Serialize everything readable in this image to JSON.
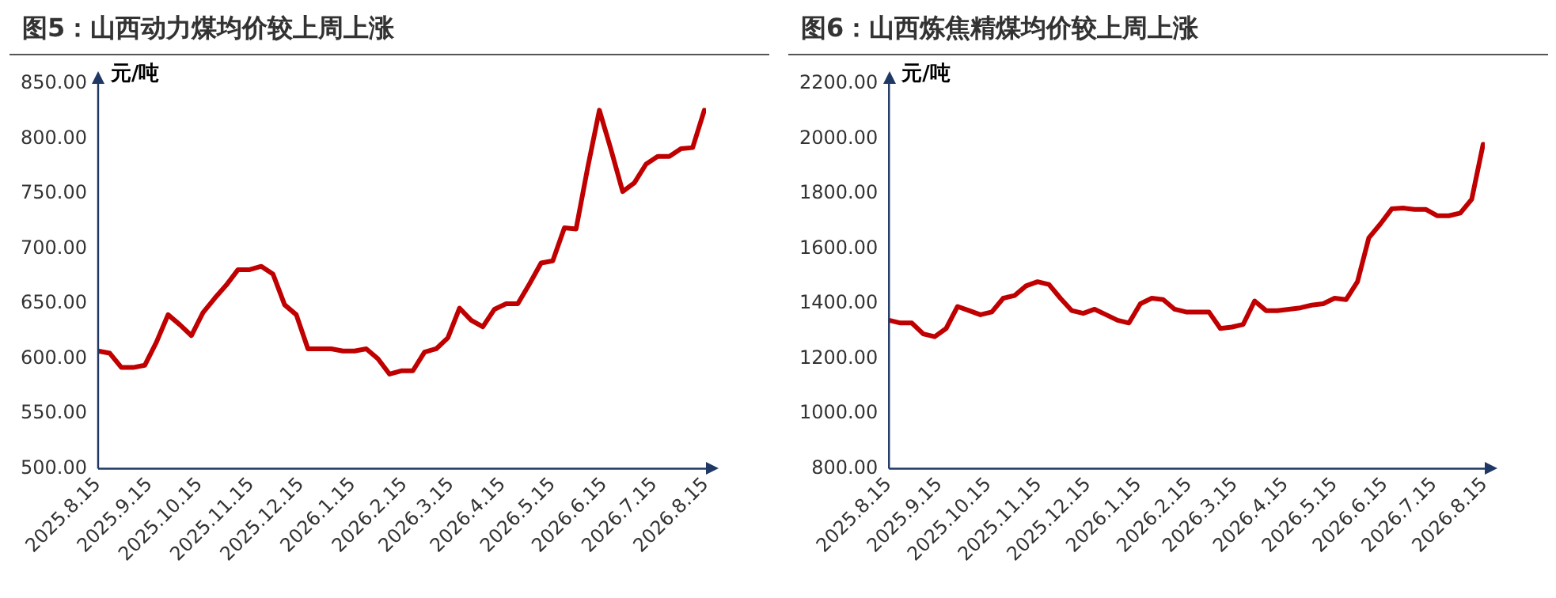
{
  "chart_data": [
    {
      "type": "line",
      "title": "图5：山西动力煤均价较上周上涨",
      "ylabel": "元/吨",
      "x": [
        "2025-08-15",
        "2025-08-22",
        "2025-08-29",
        "2025-09-05",
        "2025-09-12",
        "2025-09-19",
        "2025-09-26",
        "2025-10-03",
        "2025-10-10",
        "2025-10-17",
        "2025-10-24",
        "2025-10-31",
        "2025-11-07",
        "2025-11-14",
        "2025-11-21",
        "2025-11-28",
        "2025-12-05",
        "2025-12-12",
        "2025-12-19",
        "2025-12-26",
        "2026-01-02",
        "2026-01-09",
        "2026-01-16",
        "2026-01-23",
        "2026-01-30",
        "2026-02-06",
        "2026-02-13",
        "2026-02-20",
        "2026-02-27",
        "2026-03-06",
        "2026-03-13",
        "2026-03-20",
        "2026-03-27",
        "2026-04-03",
        "2026-04-10",
        "2026-04-17",
        "2026-04-24",
        "2026-05-01",
        "2026-05-08",
        "2026-05-15",
        "2026-05-22",
        "2026-05-29",
        "2026-06-05",
        "2026-06-12",
        "2026-06-19",
        "2026-06-26",
        "2026-07-03",
        "2026-07-10",
        "2026-07-17",
        "2026-07-24",
        "2026-07-31",
        "2026-08-07",
        "2026-08-14"
      ],
      "series": [
        {
          "color": "#c00000",
          "values": [
            607,
            605,
            592,
            592,
            594,
            615,
            640,
            631,
            621,
            642,
            655,
            667,
            681,
            681,
            684,
            677,
            649,
            640,
            609,
            609,
            609,
            607,
            607,
            609,
            600,
            586,
            589,
            589,
            606,
            609,
            619,
            646,
            635,
            629,
            645,
            650,
            650,
            668,
            687,
            689,
            719,
            718,
            774,
            826,
            790,
            752,
            760,
            777,
            784,
            784,
            791,
            792,
            826
          ]
        }
      ],
      "xlim": [
        "2025-08-15",
        "2026-08-15"
      ],
      "xticks": [
        {
          "value": "2025-08-15",
          "label": "2025.8.15"
        },
        {
          "value": "2025-09-15",
          "label": "2025.9.15"
        },
        {
          "value": "2025-10-15",
          "label": "2025.10.15"
        },
        {
          "value": "2025-11-15",
          "label": "2025.11.15"
        },
        {
          "value": "2025-12-15",
          "label": "2025.12.15"
        },
        {
          "value": "2026-01-15",
          "label": "2026.1.15"
        },
        {
          "value": "2026-02-15",
          "label": "2026.2.15"
        },
        {
          "value": "2026-03-15",
          "label": "2026.3.15"
        },
        {
          "value": "2026-04-15",
          "label": "2026.4.15"
        },
        {
          "value": "2026-05-15",
          "label": "2026.5.15"
        },
        {
          "value": "2026-06-15",
          "label": "2026.6.15"
        },
        {
          "value": "2026-07-15",
          "label": "2026.7.15"
        },
        {
          "value": "2026-08-15",
          "label": "2026.8.15"
        }
      ],
      "ylim": [
        500,
        850
      ],
      "yticks": [
        {
          "value": 500,
          "label": "500.00"
        },
        {
          "value": 550,
          "label": "550.00"
        },
        {
          "value": 600,
          "label": "600.00"
        },
        {
          "value": 650,
          "label": "650.00"
        },
        {
          "value": 700,
          "label": "700.00"
        },
        {
          "value": 750,
          "label": "750.00"
        },
        {
          "value": 800,
          "label": "800.00"
        },
        {
          "value": 850,
          "label": "850.00"
        }
      ]
    },
    {
      "type": "line",
      "title": "图6：山西炼焦精煤均价较上周上涨",
      "ylabel": "元/吨",
      "x": [
        "2025-08-15",
        "2025-08-22",
        "2025-08-29",
        "2025-09-05",
        "2025-09-12",
        "2025-09-19",
        "2025-09-26",
        "2025-10-03",
        "2025-10-10",
        "2025-10-17",
        "2025-10-24",
        "2025-10-31",
        "2025-11-07",
        "2025-11-14",
        "2025-11-21",
        "2025-11-28",
        "2025-12-05",
        "2025-12-12",
        "2025-12-19",
        "2025-12-26",
        "2026-01-02",
        "2026-01-09",
        "2026-01-16",
        "2026-01-23",
        "2026-01-30",
        "2026-02-06",
        "2026-02-13",
        "2026-02-20",
        "2026-02-27",
        "2026-03-06",
        "2026-03-13",
        "2026-03-20",
        "2026-03-27",
        "2026-04-03",
        "2026-04-10",
        "2026-04-17",
        "2026-04-24",
        "2026-05-01",
        "2026-05-08",
        "2026-05-15",
        "2026-05-22",
        "2026-05-29",
        "2026-06-05",
        "2026-06-12",
        "2026-06-19",
        "2026-06-26",
        "2026-07-03",
        "2026-07-10",
        "2026-07-17",
        "2026-07-24",
        "2026-07-31",
        "2026-08-07",
        "2026-08-14"
      ],
      "series": [
        {
          "color": "#c00000",
          "values": [
            1340,
            1330,
            1330,
            1290,
            1280,
            1310,
            1390,
            1375,
            1360,
            1370,
            1420,
            1430,
            1465,
            1480,
            1470,
            1420,
            1375,
            1365,
            1380,
            1360,
            1340,
            1330,
            1400,
            1420,
            1415,
            1380,
            1370,
            1370,
            1370,
            1310,
            1315,
            1325,
            1410,
            1375,
            1375,
            1380,
            1385,
            1395,
            1400,
            1420,
            1415,
            1480,
            1640,
            1690,
            1745,
            1748,
            1743,
            1743,
            1720,
            1720,
            1730,
            1780,
            1980
          ]
        }
      ],
      "xlim": [
        "2025-08-15",
        "2026-08-15"
      ],
      "xticks": [
        {
          "value": "2025-08-15",
          "label": "2025.8.15"
        },
        {
          "value": "2025-09-15",
          "label": "2025.9.15"
        },
        {
          "value": "2025-10-15",
          "label": "2025.10.15"
        },
        {
          "value": "2025-11-15",
          "label": "2025.11.15"
        },
        {
          "value": "2025-12-15",
          "label": "2025.12.15"
        },
        {
          "value": "2026-01-15",
          "label": "2026.1.15"
        },
        {
          "value": "2026-02-15",
          "label": "2026.2.15"
        },
        {
          "value": "2026-03-15",
          "label": "2026.3.15"
        },
        {
          "value": "2026-04-15",
          "label": "2026.4.15"
        },
        {
          "value": "2026-05-15",
          "label": "2026.5.15"
        },
        {
          "value": "2026-06-15",
          "label": "2026.6.15"
        },
        {
          "value": "2026-07-15",
          "label": "2026.7.15"
        },
        {
          "value": "2026-08-15",
          "label": "2026.8.15"
        }
      ],
      "ylim": [
        800,
        2200
      ],
      "yticks": [
        {
          "value": 800,
          "label": "800.00"
        },
        {
          "value": 1000,
          "label": "1000.00"
        },
        {
          "value": 1200,
          "label": "1200.00"
        },
        {
          "value": 1400,
          "label": "1400.00"
        },
        {
          "value": 1600,
          "label": "1600.00"
        },
        {
          "value": 1800,
          "label": "1800.00"
        },
        {
          "value": 2000,
          "label": "2000.00"
        },
        {
          "value": 2200,
          "label": "2200.00"
        }
      ]
    }
  ]
}
